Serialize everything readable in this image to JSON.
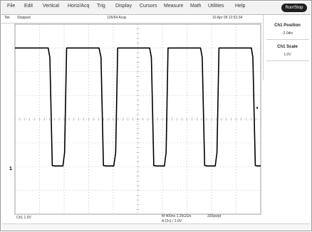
{
  "menu": {
    "items": [
      "File",
      "Edit",
      "Vertical",
      "Horiz/Acq",
      "Trig",
      "Display",
      "Cursors",
      "Measure",
      "Math",
      "Utilities",
      "Help"
    ],
    "run_label": "Run/Stop"
  },
  "status": {
    "left": "Tek",
    "mode": "Stopped",
    "acq": "126/64 Acqs",
    "date": "10 Apr 09 12:52:34"
  },
  "panel": {
    "ch1_position_label": "Ch1 Position",
    "ch1_position_value": "-2.0div",
    "ch1_scale_label": "Ch1 Scale",
    "ch1_scale_value": "1.0V"
  },
  "readout": {
    "ch1_scale": "Ch1   1.0V",
    "timebase": "M 400ns  1.25GS/s",
    "pts": "320ps/pt",
    "trigger": "A  Ch1  /  2.0V"
  },
  "markers": {
    "ch1_marker": "1",
    "trigger_level": "◂"
  },
  "colors": {
    "grid": "#9c9c9c",
    "trace": "#000000",
    "background": "#ffffff"
  },
  "chart_data": {
    "type": "line",
    "title": "",
    "xlabel": "",
    "ylabel": "",
    "xlim": [
      0,
      10
    ],
    "ylim": [
      -4,
      4
    ],
    "grid": true,
    "series": [
      {
        "values": [
          [
            0,
            3.0
          ],
          [
            1.35,
            3.0
          ],
          [
            1.42,
            2.6
          ],
          [
            1.52,
            -1.95
          ],
          [
            1.62,
            -1.97
          ],
          [
            1.95,
            -1.97
          ],
          [
            2.02,
            -1.4
          ],
          [
            2.1,
            3.0
          ],
          [
            3.42,
            3.0
          ],
          [
            3.5,
            2.6
          ],
          [
            3.6,
            -1.95
          ],
          [
            3.7,
            -1.97
          ],
          [
            4.02,
            -1.97
          ],
          [
            4.1,
            -1.4
          ],
          [
            4.18,
            3.0
          ],
          [
            5.48,
            3.0
          ],
          [
            5.55,
            2.6
          ],
          [
            5.65,
            -1.95
          ],
          [
            5.75,
            -1.97
          ],
          [
            6.08,
            -1.97
          ],
          [
            6.15,
            -1.4
          ],
          [
            6.23,
            3.0
          ],
          [
            7.55,
            3.0
          ],
          [
            7.62,
            2.6
          ],
          [
            7.72,
            -1.95
          ],
          [
            7.82,
            -1.97
          ],
          [
            8.15,
            -1.97
          ],
          [
            8.22,
            -1.4
          ],
          [
            8.3,
            3.0
          ],
          [
            9.62,
            3.0
          ],
          [
            9.68,
            2.6
          ],
          [
            9.78,
            -1.95
          ],
          [
            9.88,
            -1.97
          ],
          [
            10.0,
            -1.97
          ]
        ]
      }
    ]
  }
}
